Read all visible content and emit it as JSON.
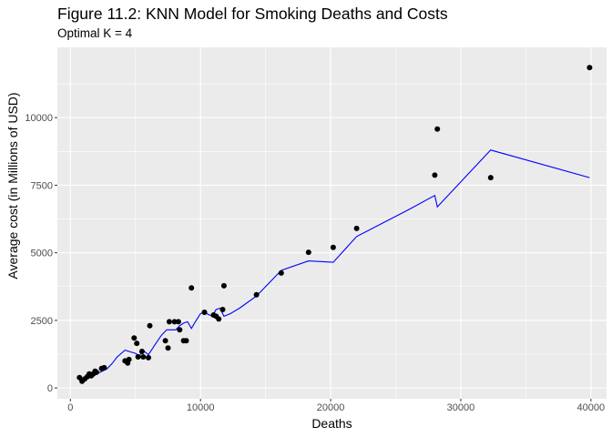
{
  "chart_data": {
    "type": "scatter",
    "title": "Figure 11.2: KNN Model for Smoking Deaths and Costs",
    "subtitle": "Optimal K = 4",
    "xlabel": "Deaths",
    "ylabel": "Average cost (in Millions of USD)",
    "xlim": [
      -1000,
      41200
    ],
    "ylim": [
      -400,
      12600
    ],
    "x_ticks": [
      0,
      10000,
      20000,
      30000,
      40000
    ],
    "x_tick_labels": [
      "0",
      "10000",
      "20000",
      "30000",
      "40000"
    ],
    "y_ticks": [
      0,
      2500,
      5000,
      7500,
      10000
    ],
    "y_tick_labels": [
      "0",
      "2500",
      "5000",
      "7500",
      "10000"
    ],
    "grid": true,
    "points": [
      {
        "x": 700,
        "y": 380
      },
      {
        "x": 900,
        "y": 250
      },
      {
        "x": 1100,
        "y": 330
      },
      {
        "x": 1300,
        "y": 420
      },
      {
        "x": 1450,
        "y": 520
      },
      {
        "x": 1600,
        "y": 450
      },
      {
        "x": 1750,
        "y": 520
      },
      {
        "x": 1900,
        "y": 620
      },
      {
        "x": 2000,
        "y": 580
      },
      {
        "x": 2400,
        "y": 720
      },
      {
        "x": 2600,
        "y": 750
      },
      {
        "x": 4200,
        "y": 1000
      },
      {
        "x": 4400,
        "y": 920
      },
      {
        "x": 4500,
        "y": 1050
      },
      {
        "x": 4900,
        "y": 1850
      },
      {
        "x": 5100,
        "y": 1650
      },
      {
        "x": 5200,
        "y": 1150
      },
      {
        "x": 5500,
        "y": 1350
      },
      {
        "x": 5600,
        "y": 1150
      },
      {
        "x": 6000,
        "y": 1120
      },
      {
        "x": 6100,
        "y": 2300
      },
      {
        "x": 7300,
        "y": 1750
      },
      {
        "x": 7500,
        "y": 1480
      },
      {
        "x": 7600,
        "y": 2450
      },
      {
        "x": 8000,
        "y": 2450
      },
      {
        "x": 8300,
        "y": 2450
      },
      {
        "x": 8400,
        "y": 2150
      },
      {
        "x": 8700,
        "y": 1750
      },
      {
        "x": 8900,
        "y": 1750
      },
      {
        "x": 9300,
        "y": 3700
      },
      {
        "x": 10300,
        "y": 2800
      },
      {
        "x": 11000,
        "y": 2700
      },
      {
        "x": 11200,
        "y": 2650
      },
      {
        "x": 11400,
        "y": 2550
      },
      {
        "x": 11700,
        "y": 2900
      },
      {
        "x": 11800,
        "y": 3780
      },
      {
        "x": 14300,
        "y": 3450
      },
      {
        "x": 16200,
        "y": 4250
      },
      {
        "x": 18300,
        "y": 5020
      },
      {
        "x": 20200,
        "y": 5200
      },
      {
        "x": 22000,
        "y": 5900
      },
      {
        "x": 28000,
        "y": 7870
      },
      {
        "x": 28200,
        "y": 9580
      },
      {
        "x": 32300,
        "y": 7780
      },
      {
        "x": 39900,
        "y": 11850
      }
    ],
    "series": [
      {
        "type": "line",
        "color": "#0000ff",
        "x": [
          700,
          1000,
          1300,
          1600,
          1900,
          2200,
          2500,
          2800,
          3200,
          3600,
          4200,
          4700,
          5000,
          5300,
          5600,
          6000,
          6500,
          7000,
          7400,
          7800,
          8100,
          8400,
          8700,
          9000,
          9300,
          9600,
          10000,
          10300,
          10600,
          10900,
          11200,
          11500,
          11800,
          12300,
          13000,
          14300,
          16200,
          18300,
          20200,
          22000,
          24000,
          26000,
          28000,
          28200,
          32300,
          39900
        ],
        "y": [
          330,
          330,
          360,
          400,
          480,
          560,
          630,
          700,
          900,
          1150,
          1400,
          1320,
          1280,
          1190,
          1380,
          1230,
          1600,
          1950,
          2150,
          2150,
          2150,
          2300,
          2400,
          2450,
          2200,
          2450,
          2750,
          2800,
          2720,
          2650,
          2900,
          2950,
          2650,
          2750,
          2950,
          3400,
          4350,
          4700,
          4650,
          5600,
          6100,
          6600,
          7120,
          6700,
          8800,
          7780
        ]
      }
    ],
    "colors": {
      "panel_background": "#ebebeb",
      "grid": "#ffffff",
      "points": "#000000",
      "line": "#0000ff",
      "axis_text": "#4d4d4d"
    }
  }
}
